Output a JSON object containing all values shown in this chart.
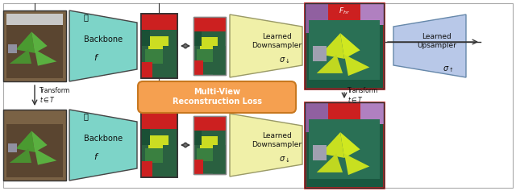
{
  "fig_width": 6.4,
  "fig_height": 2.37,
  "dpi": 100,
  "bg_color": "#ffffff",
  "backbone_color": "#7dd4c8",
  "learned_down_color": "#f0f0a8",
  "learned_up_color": "#b8c8e8",
  "mvloss_color": "#f5a050",
  "backbone_label": "Backbone",
  "ld_label": "Learned\nDownsampler",
  "ld_sigma": "$\\sigma_{\\downarrow}$",
  "lu_label": "Learned\nUpsampler",
  "lu_sigma": "$\\sigma_{\\uparrow}$",
  "mvloss_label": "Multi-View\nReconstruction Loss",
  "transform_label": "Transform\n$t \\in T$",
  "fhr_label": "$F_{hr}$",
  "arrow_color": "#333333",
  "dashed_color": "#555555",
  "text_color": "#111111"
}
